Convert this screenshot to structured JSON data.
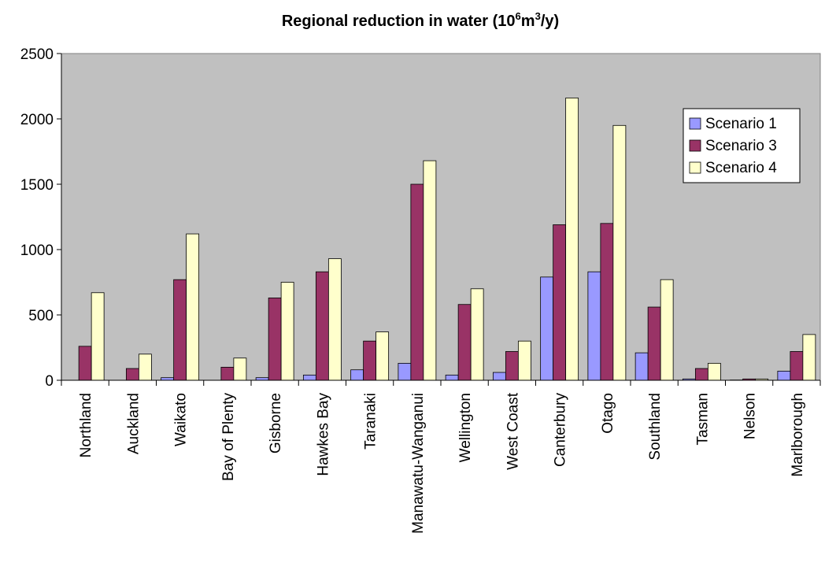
{
  "chart_data": {
    "type": "bar",
    "title": {
      "prefix": "Regional reduction in water (10",
      "sup1": "6",
      "mid": "m",
      "sup2": "3",
      "suffix": "/y)"
    },
    "xlabel": "",
    "ylabel": "",
    "ylim": [
      0,
      2500
    ],
    "yticks": [
      0,
      500,
      1000,
      1500,
      2000,
      2500
    ],
    "grid": false,
    "legend_position": "top-right",
    "categories": [
      "Northland",
      "Auckland",
      "Waikato",
      "Bay of Plenty",
      "Gisborne",
      "Hawkes Bay",
      "Taranaki",
      "Manawatu-Wanganui",
      "Wellington",
      "West Coast",
      "Canterbury",
      "Otago",
      "Southland",
      "Tasman",
      "Nelson",
      "Marlborough"
    ],
    "series": [
      {
        "name": "Scenario 1",
        "color": "#9999ff",
        "values": [
          0,
          0,
          20,
          0,
          20,
          40,
          80,
          130,
          40,
          60,
          790,
          830,
          210,
          10,
          2,
          70
        ]
      },
      {
        "name": "Scenario 3",
        "color": "#993366",
        "values": [
          260,
          90,
          770,
          100,
          630,
          830,
          300,
          1500,
          580,
          220,
          1190,
          1200,
          560,
          90,
          10,
          220
        ]
      },
      {
        "name": "Scenario 4",
        "color": "#ffffcc",
        "values": [
          670,
          200,
          1120,
          170,
          750,
          930,
          370,
          1680,
          700,
          300,
          2160,
          1950,
          770,
          130,
          10,
          350
        ]
      }
    ],
    "plot_background": "#c0c0c0"
  }
}
